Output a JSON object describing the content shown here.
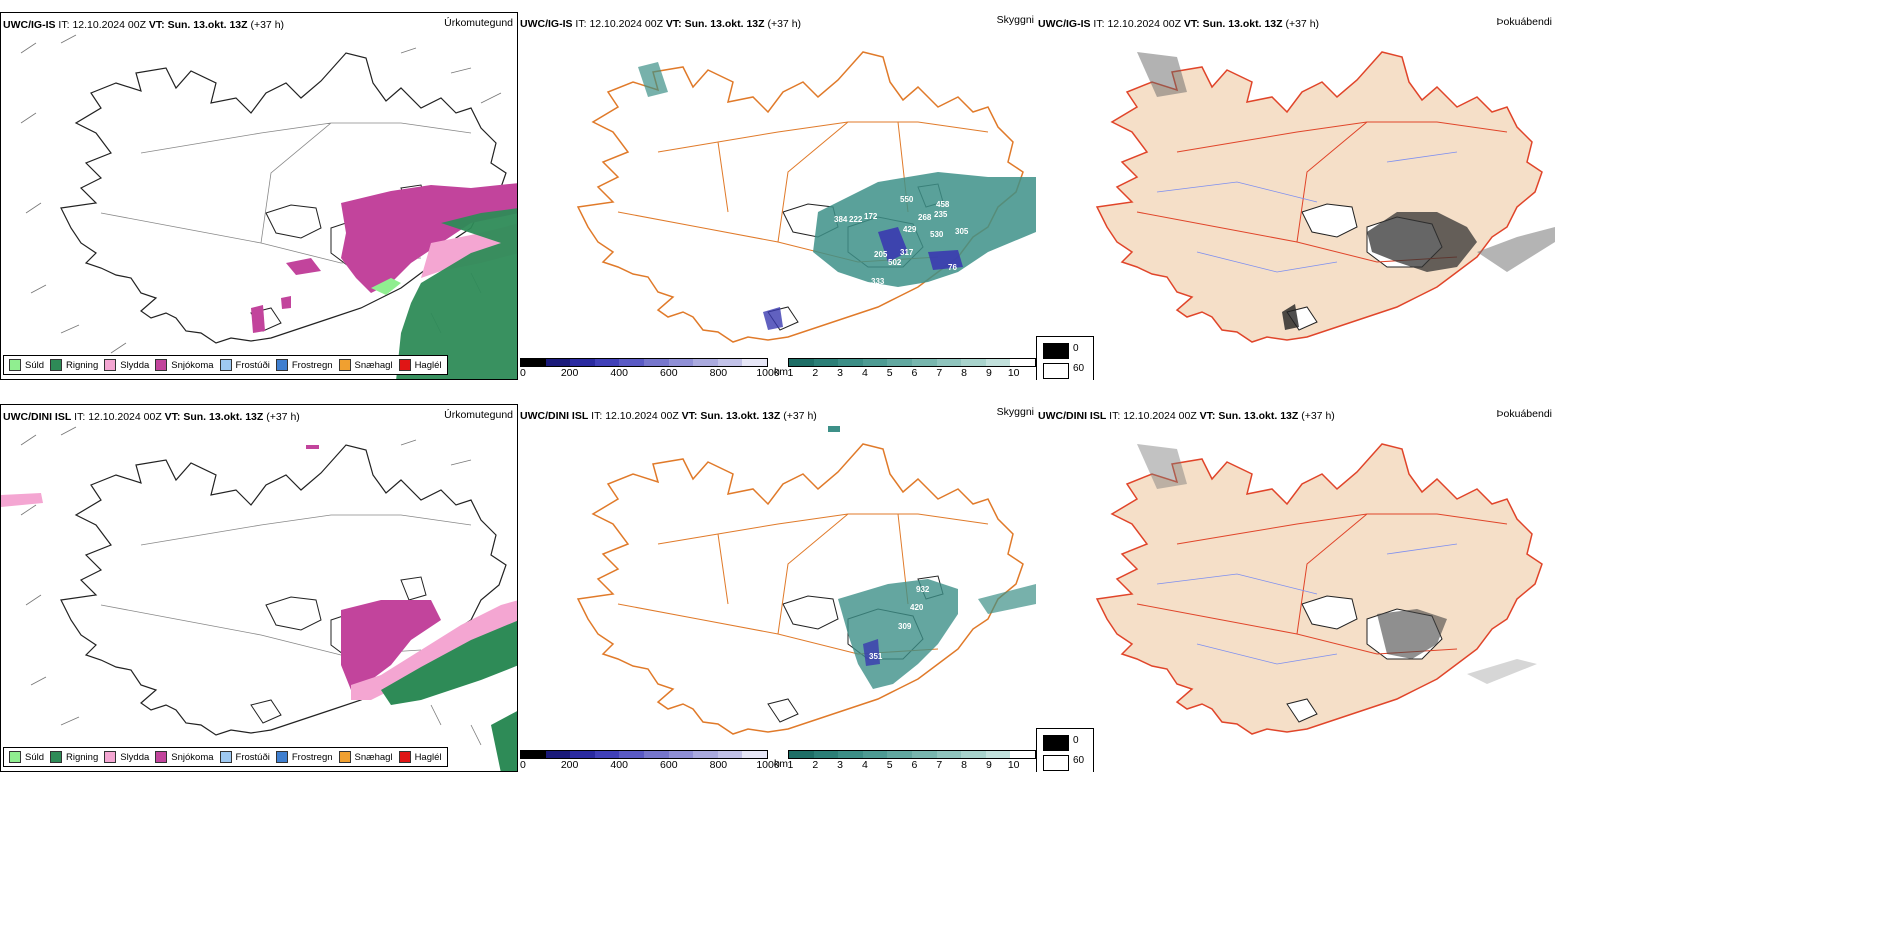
{
  "rows": [
    {
      "model": "UWC/IG-IS",
      "panels": [
        {
          "model": "UWC/IG-IS",
          "field": "Úrkomutegund"
        },
        {
          "model": "UWC/IG-IS",
          "field": "Skyggni"
        },
        {
          "model": "UWC/IG-IS",
          "field": "Þokuábendi"
        }
      ],
      "visibility_labels": [
        "550",
        "458",
        "384",
        "222",
        "172",
        "268",
        "235",
        "429",
        "530",
        "305",
        "205",
        "317",
        "502",
        "76",
        "333"
      ]
    },
    {
      "model": "UWC/DINI ISL",
      "panels": [
        {
          "model": "UWC/DINI ISL",
          "field": "Úrkomutegund"
        },
        {
          "model": "UWC/DINI ISL",
          "field": "Skyggni"
        },
        {
          "model": "UWC/DINI ISL",
          "field": "Þokuábendi"
        }
      ],
      "visibility_labels": [
        "932",
        "420",
        "309",
        "351"
      ]
    }
  ],
  "header": {
    "it_label": "IT:",
    "it_value": "12.10.2024 00Z",
    "vt_label": "VT:",
    "vt_value": "Sun. 13.okt. 13Z",
    "lead": "(+37 h)"
  },
  "precip_legend": [
    {
      "label": "Súld",
      "color": "#90ee90"
    },
    {
      "label": "Rigning",
      "color": "#2e8b57"
    },
    {
      "label": "Slydda",
      "color": "#f4a6d2"
    },
    {
      "label": "Snjókoma",
      "color": "#c2449c"
    },
    {
      "label": "Frostúði",
      "color": "#9ec9f2"
    },
    {
      "label": "Frostregn",
      "color": "#3f7fd0"
    },
    {
      "label": "Snæhagl",
      "color": "#f0a030"
    },
    {
      "label": "Haglél",
      "color": "#e01515"
    }
  ],
  "cloud_base_scale": {
    "unit": "m",
    "ticks": [
      "0",
      "200",
      "400",
      "600",
      "800",
      "1000"
    ],
    "colors": [
      "#000000",
      "#1a1a7a",
      "#2a2aa0",
      "#4040b8",
      "#5a5ac4",
      "#7676cc",
      "#9090d6",
      "#aaaade",
      "#c2c2e8",
      "#e6e6f6"
    ]
  },
  "visibility_scale": {
    "unit": "km",
    "ticks": [
      "1",
      "2",
      "3",
      "4",
      "5",
      "6",
      "7",
      "8",
      "9",
      "10"
    ],
    "colors": [
      "#1e6e66",
      "#2c7f77",
      "#3c8e86",
      "#4e9b93",
      "#62a8a0",
      "#78b6ae",
      "#8fc4bd",
      "#a8d3cc",
      "#c2e1dc",
      "#ffffff"
    ]
  },
  "fog_legend": {
    "items": [
      {
        "label": "0",
        "color": "#000000"
      },
      {
        "label": "60",
        "color": "#ffffff"
      }
    ]
  },
  "colors": {
    "land_fog_panel": "#f5dfc8",
    "roads": "#e07a2a",
    "roads_fog": "#e0452a",
    "rivers": "#7d8ef0",
    "coast": "#222222",
    "snow": "#c2449c",
    "sleet": "#f4a6d2",
    "rain": "#2e8b57",
    "drizzle": "#90ee90",
    "visibility": "#3d9088",
    "cloudbase": "#3a3ab0"
  }
}
